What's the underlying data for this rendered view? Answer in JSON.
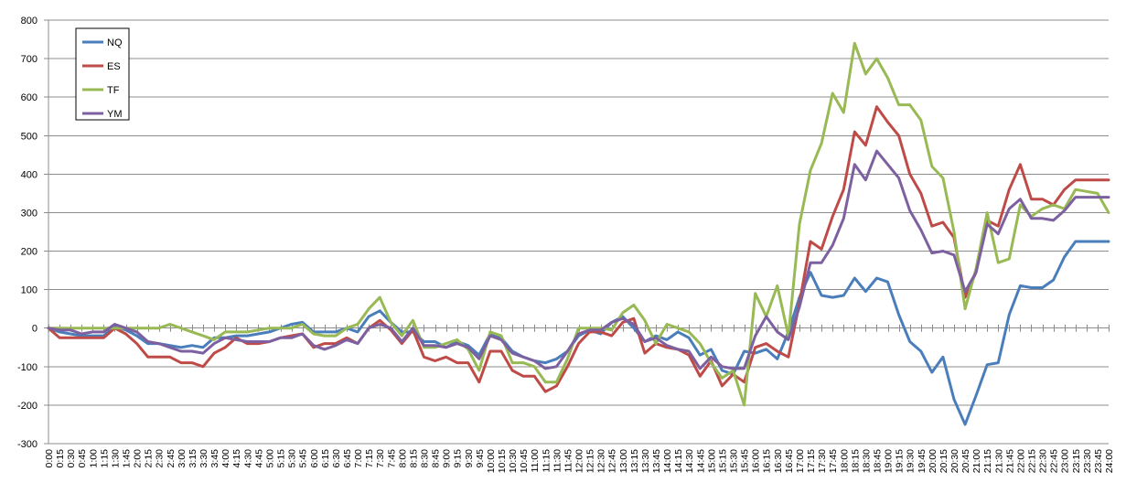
{
  "chart_data": {
    "type": "line",
    "title": "",
    "xlabel": "",
    "ylabel": "",
    "ylim": [
      -300,
      800
    ],
    "y_ticks": [
      -300,
      -200,
      -100,
      0,
      100,
      200,
      300,
      400,
      500,
      600,
      700,
      800
    ],
    "grid": "horizontal",
    "legend_position": "top-left",
    "x_labels": [
      "0:00",
      "0:15",
      "0:30",
      "0:45",
      "1:00",
      "1:15",
      "1:30",
      "1:45",
      "2:00",
      "2:15",
      "2:30",
      "2:45",
      "3:00",
      "3:15",
      "3:30",
      "3:45",
      "4:00",
      "4:15",
      "4:30",
      "4:45",
      "5:00",
      "5:15",
      "5:30",
      "5:45",
      "6:00",
      "6:15",
      "6:30",
      "6:45",
      "7:00",
      "7:15",
      "7:30",
      "7:45",
      "8:00",
      "8:15",
      "8:30",
      "8:45",
      "9:00",
      "9:15",
      "9:30",
      "9:45",
      "10:00",
      "10:15",
      "10:30",
      "10:45",
      "11:00",
      "11:15",
      "11:30",
      "11:45",
      "12:00",
      "12:15",
      "12:30",
      "12:45",
      "13:00",
      "13:15",
      "13:30",
      "13:45",
      "14:00",
      "14:15",
      "14:30",
      "14:45",
      "15:00",
      "15:15",
      "15:30",
      "15:45",
      "16:00",
      "16:15",
      "16:30",
      "16:45",
      "17:00",
      "17:15",
      "17:30",
      "17:45",
      "18:00",
      "18:15",
      "18:30",
      "18:45",
      "19:00",
      "19:15",
      "19:30",
      "19:45",
      "20:00",
      "20:15",
      "20:30",
      "20:45",
      "21:00",
      "21:15",
      "21:30",
      "21:45",
      "22:00",
      "22:15",
      "22:30",
      "22:45",
      "23:00",
      "23:15",
      "23:30",
      "23:45",
      "24:00"
    ],
    "series": [
      {
        "name": "NQ",
        "color": "#4a7ebb",
        "values": [
          0,
          -10,
          -15,
          -20,
          -20,
          -20,
          5,
          -5,
          -20,
          -40,
          -40,
          -45,
          -50,
          -45,
          -50,
          -25,
          -25,
          -20,
          -20,
          -15,
          -10,
          0,
          10,
          15,
          -10,
          -10,
          -10,
          0,
          -10,
          30,
          45,
          15,
          -10,
          -10,
          -35,
          -35,
          -50,
          -35,
          -45,
          -70,
          -15,
          -25,
          -60,
          -75,
          -85,
          -90,
          -80,
          -60,
          -20,
          -5,
          -15,
          15,
          30,
          0,
          -35,
          -20,
          -30,
          -10,
          -25,
          -70,
          -55,
          -110,
          -120,
          -60,
          -65,
          -55,
          -80,
          -10,
          80,
          145,
          85,
          80,
          85,
          130,
          95,
          130,
          120,
          35,
          -35,
          -60,
          -115,
          -75,
          -185,
          -250,
          -175,
          -95,
          -90,
          35,
          110,
          105,
          105,
          125,
          185,
          225,
          225,
          225,
          225
        ]
      },
      {
        "name": "ES",
        "color": "#be4b48",
        "values": [
          0,
          -25,
          -25,
          -25,
          -25,
          -25,
          0,
          -15,
          -40,
          -75,
          -75,
          -75,
          -90,
          -90,
          -100,
          -65,
          -50,
          -25,
          -40,
          -40,
          -35,
          -25,
          -20,
          -15,
          -50,
          -40,
          -40,
          -25,
          -40,
          0,
          20,
          -5,
          -40,
          -5,
          -75,
          -85,
          -75,
          -90,
          -90,
          -140,
          -60,
          -60,
          -110,
          -125,
          -125,
          -165,
          -150,
          -100,
          -40,
          -10,
          -10,
          -20,
          15,
          25,
          -65,
          -40,
          -50,
          -55,
          -70,
          -125,
          -85,
          -150,
          -120,
          -140,
          -50,
          -40,
          -60,
          -75,
          65,
          225,
          205,
          290,
          360,
          510,
          475,
          575,
          535,
          500,
          400,
          350,
          265,
          275,
          235,
          80,
          145,
          280,
          265,
          360,
          425,
          335,
          335,
          320,
          360,
          385,
          385,
          385,
          385
        ]
      },
      {
        "name": "TF",
        "color": "#98b954",
        "values": [
          0,
          0,
          0,
          0,
          0,
          0,
          0,
          0,
          0,
          0,
          0,
          10,
          0,
          -10,
          -20,
          -30,
          -10,
          -10,
          -10,
          -5,
          0,
          0,
          0,
          10,
          -15,
          -20,
          -20,
          0,
          10,
          50,
          80,
          15,
          -20,
          20,
          -50,
          -50,
          -40,
          -30,
          -55,
          -110,
          -10,
          -20,
          -90,
          -90,
          -100,
          -140,
          -140,
          -80,
          0,
          0,
          0,
          -5,
          40,
          60,
          20,
          -40,
          10,
          0,
          -10,
          -40,
          -90,
          -130,
          -110,
          -200,
          90,
          30,
          110,
          -20,
          270,
          410,
          480,
          610,
          560,
          740,
          660,
          700,
          650,
          580,
          580,
          540,
          420,
          390,
          250,
          50,
          155,
          300,
          170,
          180,
          320,
          290,
          310,
          320,
          310,
          360,
          355,
          350,
          300
        ]
      },
      {
        "name": "YM",
        "color": "#7d60a0",
        "values": [
          0,
          -5,
          -5,
          -15,
          -10,
          -10,
          10,
          0,
          -10,
          -35,
          -40,
          -50,
          -60,
          -60,
          -65,
          -40,
          -25,
          -30,
          -35,
          -35,
          -35,
          -25,
          -25,
          -15,
          -45,
          -55,
          -45,
          -30,
          -40,
          0,
          10,
          0,
          -35,
          0,
          -45,
          -45,
          -50,
          -40,
          -50,
          -80,
          -20,
          -30,
          -65,
          -75,
          -85,
          -105,
          -100,
          -60,
          -15,
          -5,
          -5,
          15,
          25,
          10,
          -35,
          -25,
          -45,
          -55,
          -60,
          -105,
          -75,
          -100,
          -105,
          -105,
          -20,
          30,
          -10,
          -30,
          55,
          170,
          170,
          215,
          285,
          425,
          385,
          460,
          425,
          390,
          305,
          255,
          195,
          200,
          190,
          95,
          145,
          270,
          245,
          310,
          335,
          285,
          285,
          280,
          305,
          340,
          340,
          340,
          340
        ]
      }
    ]
  }
}
